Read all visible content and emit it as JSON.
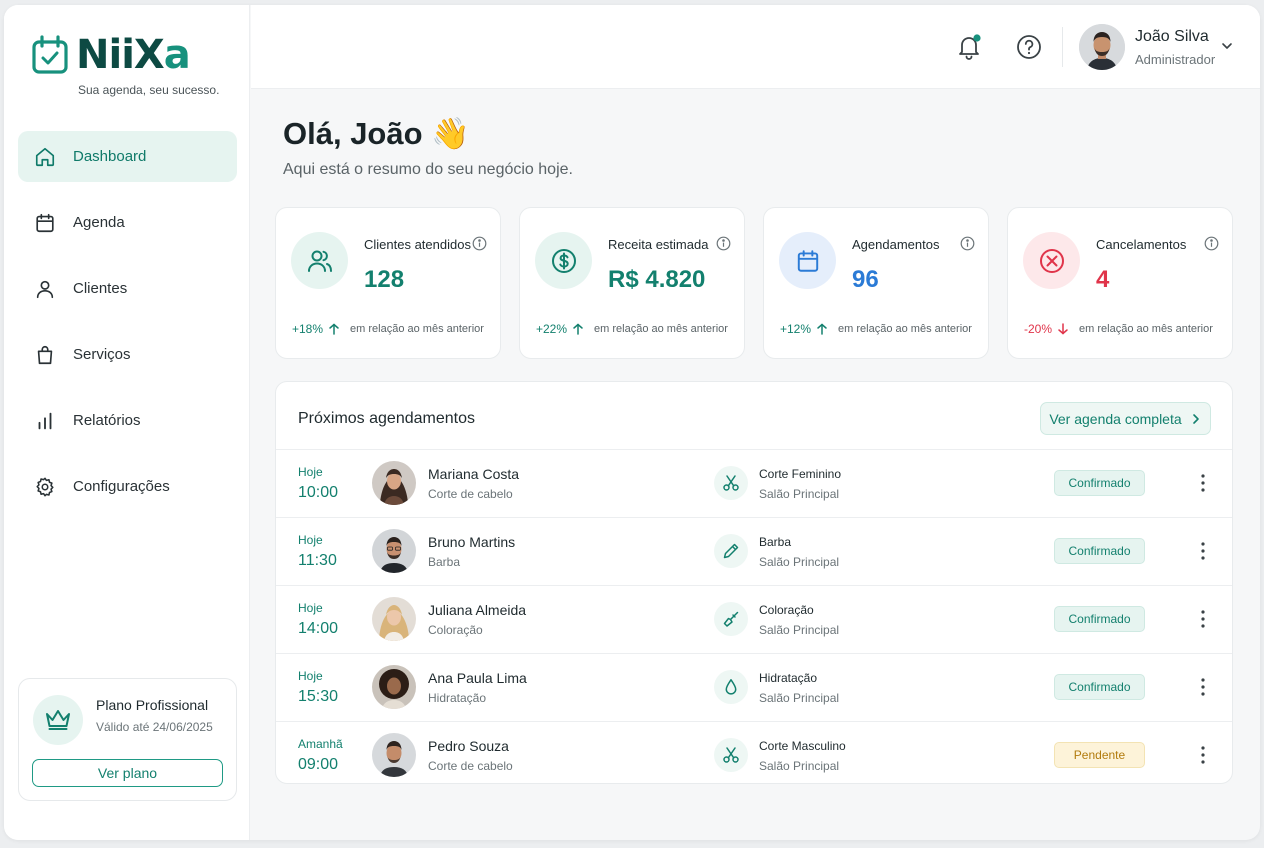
{
  "brand": {
    "name_main": "NiiX",
    "name_accent": "a",
    "tagline": "Sua agenda, seu sucesso.",
    "colors": {
      "primary": "#13806e",
      "dark": "#0d4a43",
      "accent_bg": "#e6f4f0",
      "danger": "#e0344a",
      "blue": "#2b7bd6"
    }
  },
  "sidebar": {
    "items": [
      {
        "label": "Dashboard",
        "icon": "home-icon",
        "active": true
      },
      {
        "label": "Agenda",
        "icon": "calendar-icon",
        "active": false
      },
      {
        "label": "Clientes",
        "icon": "user-icon",
        "active": false
      },
      {
        "label": "Serviços",
        "icon": "shopping-bag-icon",
        "active": false
      },
      {
        "label": "Relatórios",
        "icon": "bar-chart-icon",
        "active": false
      },
      {
        "label": "Configurações",
        "icon": "gear-icon",
        "active": false
      }
    ],
    "plan": {
      "name": "Plano Profissional",
      "valid": "Válido até 24/06/2025",
      "button": "Ver plano"
    }
  },
  "header": {
    "user_name": "João Silva",
    "user_role": "Administrador"
  },
  "main": {
    "greeting": "Olá, João 👋",
    "subtitle": "Aqui está o resumo do seu negócio hoje.",
    "stats": [
      {
        "label": "Clientes atendidos",
        "value": "128",
        "delta": "+18%",
        "direction": "up",
        "note": "em relação ao mês anterior",
        "icon": "users-icon",
        "color": "#13806e"
      },
      {
        "label": "Receita estimada",
        "value": "R$ 4.820",
        "delta": "+22%",
        "direction": "up",
        "note": "em relação ao mês anterior",
        "icon": "dollar-icon",
        "color": "#13806e"
      },
      {
        "label": "Agendamentos",
        "value": "96",
        "delta": "+12%",
        "direction": "up",
        "note": "em relação ao mês anterior",
        "icon": "calendar-icon",
        "color": "#2b7bd6"
      },
      {
        "label": "Cancelamentos",
        "value": "4",
        "delta": "-20%",
        "direction": "down",
        "note": "em relação ao mês anterior",
        "icon": "x-circle-icon",
        "color": "#e0344a"
      }
    ],
    "appointments": {
      "title": "Próximos agendamentos",
      "view_all": "Ver agenda completa",
      "rows": [
        {
          "day": "Hoje",
          "time": "10:00",
          "client": "Mariana Costa",
          "service_short": "Corte de cabelo",
          "service": "Corte Feminino",
          "place": "Salão Principal",
          "status": "Confirmado",
          "status_type": "ok",
          "icon": "scissors-icon"
        },
        {
          "day": "Hoje",
          "time": "11:30",
          "client": "Bruno Martins",
          "service_short": "Barba",
          "service": "Barba",
          "place": "Salão Principal",
          "status": "Confirmado",
          "status_type": "ok",
          "icon": "razor-icon"
        },
        {
          "day": "Hoje",
          "time": "14:00",
          "client": "Juliana Almeida",
          "service_short": "Coloração",
          "service": "Coloração",
          "place": "Salão Principal",
          "status": "Confirmado",
          "status_type": "ok",
          "icon": "brush-icon"
        },
        {
          "day": "Hoje",
          "time": "15:30",
          "client": "Ana Paula Lima",
          "service_short": "Hidratação",
          "service": "Hidratação",
          "place": "Salão Principal",
          "status": "Confirmado",
          "status_type": "ok",
          "icon": "droplet-icon"
        },
        {
          "day": "Amanhã",
          "time": "09:00",
          "client": "Pedro Souza",
          "service_short": "Corte de cabelo",
          "service": "Corte Masculino",
          "place": "Salão Principal",
          "status": "Pendente",
          "status_type": "pend",
          "icon": "scissors-icon"
        }
      ]
    }
  }
}
